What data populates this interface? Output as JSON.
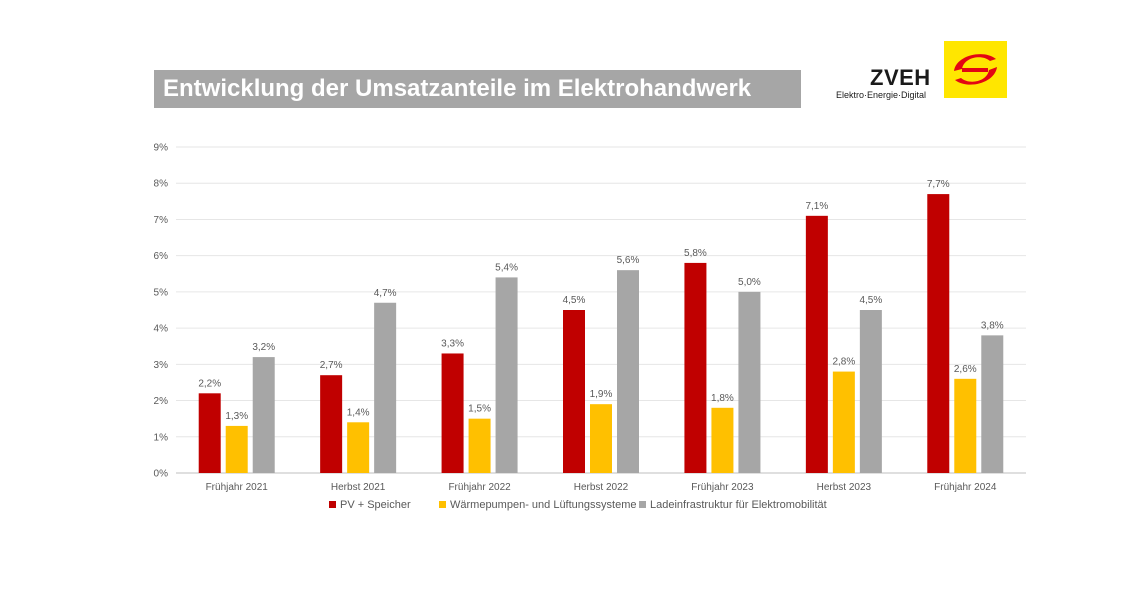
{
  "header": {
    "title": "Entwicklung der Umsatzanteile im Elektrohandwerk"
  },
  "logo": {
    "name": "ZVEH",
    "tagline": "Elektro·Energie·Digital",
    "accent_color": "#ffe600",
    "mark_color": "#e30613"
  },
  "chart_data": {
    "type": "bar",
    "categories": [
      "Frühjahr 2021",
      "Herbst 2021",
      "Frühjahr 2022",
      "Herbst 2022",
      "Frühjahr 2023",
      "Herbst 2023",
      "Frühjahr 2024"
    ],
    "series": [
      {
        "name": "PV + Speicher",
        "color": "#c00000",
        "values": [
          2.2,
          2.7,
          3.3,
          4.5,
          5.8,
          7.1,
          7.7
        ],
        "labels": [
          "2,2%",
          "2,7%",
          "3,3%",
          "4,5%",
          "5,8%",
          "7,1%",
          "7,7%"
        ]
      },
      {
        "name": "Wärmepumpen- und Lüftungssysteme",
        "color": "#ffc000",
        "values": [
          1.3,
          1.4,
          1.5,
          1.9,
          1.8,
          2.8,
          2.6
        ],
        "labels": [
          "1,3%",
          "1,4%",
          "1,5%",
          "1,9%",
          "1,8%",
          "2,8%",
          "2,6%"
        ]
      },
      {
        "name": "Ladeinfrastruktur für Elektromobilität",
        "color": "#a6a6a6",
        "values": [
          3.2,
          4.7,
          5.4,
          5.6,
          5.0,
          4.5,
          3.8
        ],
        "labels": [
          "3,2%",
          "4,7%",
          "5,4%",
          "5,6%",
          "5,0%",
          "4,5%",
          "3,8%"
        ]
      }
    ],
    "ylim": [
      0,
      9
    ],
    "yticks": [
      "0%",
      "1%",
      "2%",
      "3%",
      "4%",
      "5%",
      "6%",
      "7%",
      "8%",
      "9%"
    ],
    "grid": true,
    "legend_position": "bottom"
  }
}
